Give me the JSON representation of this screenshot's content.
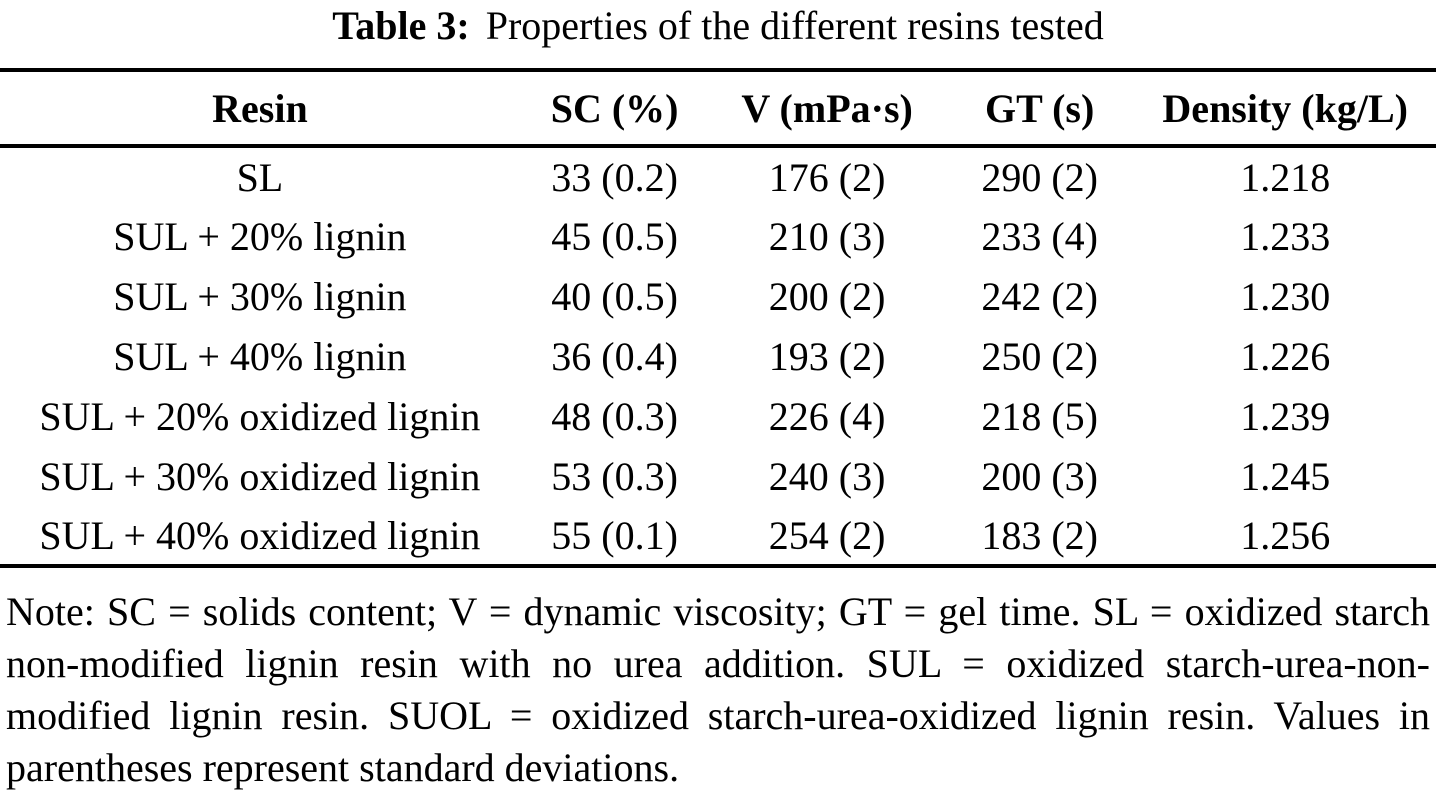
{
  "caption": {
    "label": "Table 3:",
    "text": "Properties of the different resins tested"
  },
  "table": {
    "columns": [
      "Resin",
      "SC (%)",
      "V (mPa·s)",
      "GT (s)",
      "Density (kg/L)"
    ],
    "rows": [
      {
        "resin": "SL",
        "sc": "33 (0.2)",
        "v": "176 (2)",
        "gt": "290 (2)",
        "density": "1.218"
      },
      {
        "resin": "SUL + 20% lignin",
        "sc": "45 (0.5)",
        "v": "210 (3)",
        "gt": "233 (4)",
        "density": "1.233"
      },
      {
        "resin": "SUL + 30% lignin",
        "sc": "40 (0.5)",
        "v": "200 (2)",
        "gt": "242 (2)",
        "density": "1.230"
      },
      {
        "resin": "SUL + 40% lignin",
        "sc": "36 (0.4)",
        "v": "193 (2)",
        "gt": "250 (2)",
        "density": "1.226"
      },
      {
        "resin": "SUL + 20% oxidized lignin",
        "sc": "48 (0.3)",
        "v": "226 (4)",
        "gt": "218 (5)",
        "density": "1.239"
      },
      {
        "resin": "SUL + 30% oxidized lignin",
        "sc": "53 (0.3)",
        "v": "240 (3)",
        "gt": "200 (3)",
        "density": "1.245"
      },
      {
        "resin": "SUL + 40% oxidized lignin",
        "sc": "55 (0.1)",
        "v": "254 (2)",
        "gt": "183 (2)",
        "density": "1.256"
      }
    ]
  },
  "note": {
    "lines": [
      "Note: SC = solids content; V = dynamic viscosity; GT = gel time. SL = oxidized starch",
      "non-modified lignin resin with no urea addition. SUL = oxidized starch-urea-non-",
      "modified lignin resin. SUOL = oxidized starch-urea-oxidized lignin resin. Values in",
      "parentheses represent standard deviations."
    ]
  },
  "colors": {
    "text": "#000000",
    "background": "#ffffff",
    "rule": "#000000"
  }
}
